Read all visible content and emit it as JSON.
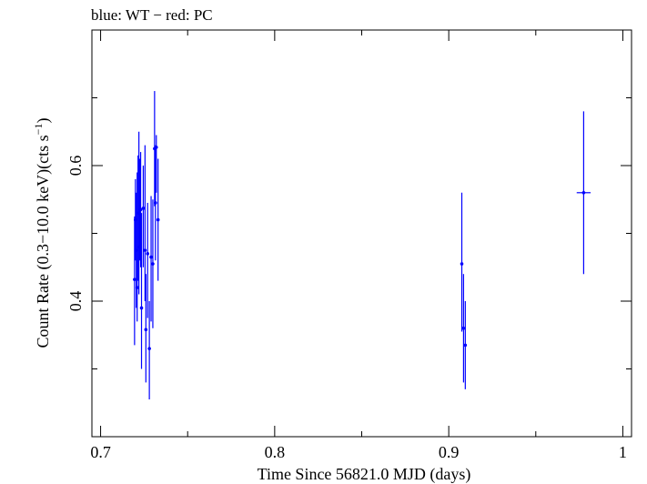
{
  "chart_data": {
    "type": "scatter",
    "title": "blue: WT − red: PC",
    "xlabel": "Time Since 56821.0 MJD (days)",
    "ylabel_main": "Count Rate (0.3−10.0 keV)(cts s",
    "ylabel_sup": "−1",
    "ylabel_close": ")",
    "xlim": [
      0.695,
      1.005
    ],
    "ylim": [
      0.2,
      0.8
    ],
    "xticks": [
      0.7,
      0.8,
      0.9,
      1.0
    ],
    "xtick_labels": [
      "0.7",
      "0.8",
      "0.9",
      "1"
    ],
    "yticks": [
      0.4,
      0.6
    ],
    "ytick_labels": [
      "0.4",
      "0.6"
    ],
    "series": [
      {
        "name": "WT",
        "color": "#0000ff",
        "points": [
          {
            "x": 0.7195,
            "y": 0.432,
            "ylo": 0.335,
            "yhi": 0.525
          },
          {
            "x": 0.72,
            "y": 0.52,
            "ylo": 0.46,
            "yhi": 0.58
          },
          {
            "x": 0.7205,
            "y": 0.475,
            "ylo": 0.39,
            "yhi": 0.56
          },
          {
            "x": 0.721,
            "y": 0.42,
            "ylo": 0.37,
            "yhi": 0.59
          },
          {
            "x": 0.7215,
            "y": 0.53,
            "ylo": 0.43,
            "yhi": 0.615
          },
          {
            "x": 0.722,
            "y": 0.48,
            "ylo": 0.41,
            "yhi": 0.65
          },
          {
            "x": 0.7225,
            "y": 0.535,
            "ylo": 0.46,
            "yhi": 0.61
          },
          {
            "x": 0.723,
            "y": 0.535,
            "ylo": 0.45,
            "yhi": 0.62
          },
          {
            "x": 0.7235,
            "y": 0.39,
            "ylo": 0.3,
            "yhi": 0.53
          },
          {
            "x": 0.7245,
            "y": 0.537,
            "ylo": 0.45,
            "yhi": 0.6
          },
          {
            "x": 0.7255,
            "y": 0.475,
            "ylo": 0.4,
            "yhi": 0.63
          },
          {
            "x": 0.726,
            "y": 0.358,
            "ylo": 0.28,
            "yhi": 0.44
          },
          {
            "x": 0.727,
            "y": 0.47,
            "ylo": 0.375,
            "yhi": 0.545
          },
          {
            "x": 0.728,
            "y": 0.33,
            "ylo": 0.255,
            "yhi": 0.4
          },
          {
            "x": 0.729,
            "y": 0.465,
            "ylo": 0.37,
            "yhi": 0.555
          },
          {
            "x": 0.73,
            "y": 0.455,
            "ylo": 0.36,
            "yhi": 0.55
          },
          {
            "x": 0.731,
            "y": 0.625,
            "ylo": 0.54,
            "yhi": 0.71
          },
          {
            "x": 0.7315,
            "y": 0.545,
            "ylo": 0.46,
            "yhi": 0.63
          },
          {
            "x": 0.732,
            "y": 0.627,
            "ylo": 0.56,
            "yhi": 0.645
          },
          {
            "x": 0.733,
            "y": 0.52,
            "ylo": 0.43,
            "yhi": 0.61
          },
          {
            "x": 0.9075,
            "y": 0.455,
            "ylo": 0.355,
            "yhi": 0.56
          },
          {
            "x": 0.9085,
            "y": 0.36,
            "ylo": 0.28,
            "yhi": 0.44
          },
          {
            "x": 0.9095,
            "y": 0.335,
            "ylo": 0.27,
            "yhi": 0.4
          },
          {
            "x": 0.9775,
            "y": 0.56,
            "ylo": 0.44,
            "yhi": 0.68,
            "xerr": 0.004
          }
        ]
      }
    ]
  }
}
